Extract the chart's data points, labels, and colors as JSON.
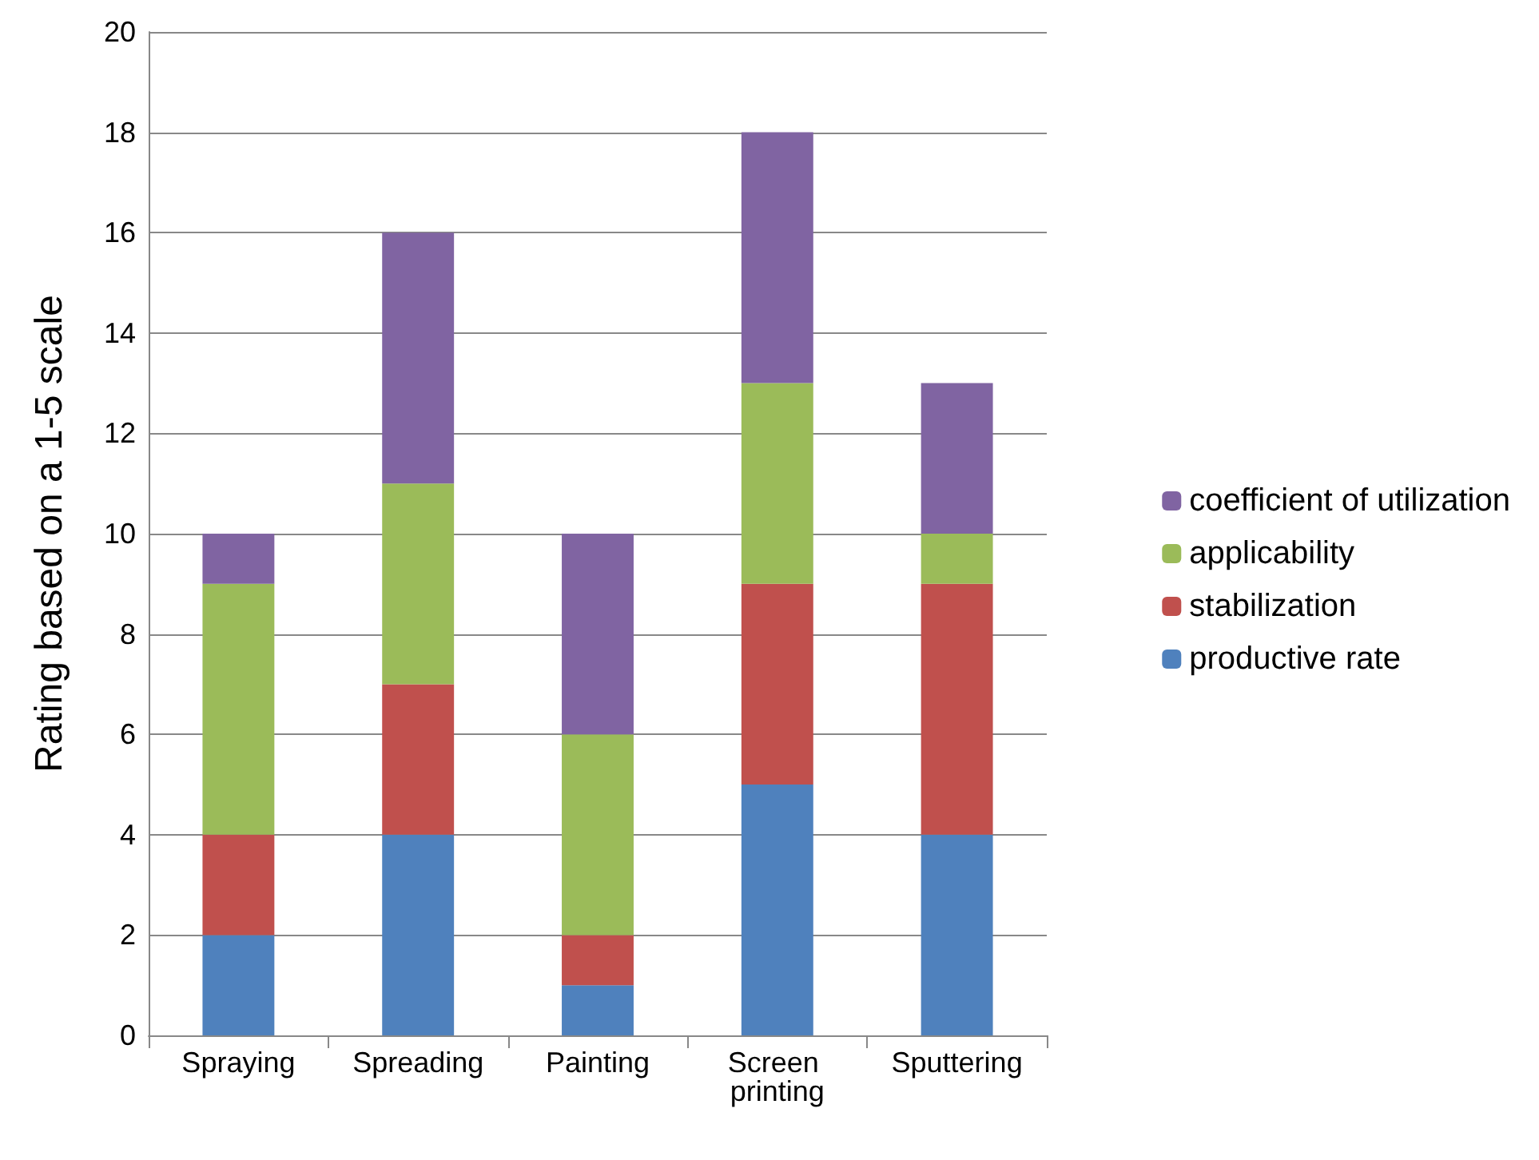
{
  "chart_data": {
    "type": "bar",
    "stacked": true,
    "ylabel": "Rating based on a 1-5 scale",
    "categories": [
      "Spraying",
      "Spreading",
      "Painting",
      "Screen printing",
      "Sputtering"
    ],
    "series": [
      {
        "name": "productive rate",
        "color": "#4f81bd",
        "values": [
          2,
          4,
          1,
          5,
          4
        ]
      },
      {
        "name": "stabilization",
        "color": "#c0504d",
        "values": [
          2,
          3,
          1,
          4,
          5
        ]
      },
      {
        "name": "applicability",
        "color": "#9bbb59",
        "values": [
          5,
          4,
          4,
          4,
          1
        ]
      },
      {
        "name": "coefficient of utilization",
        "color": "#8064a2",
        "values": [
          1,
          5,
          4,
          5,
          3
        ]
      }
    ],
    "ylim": [
      0,
      20
    ],
    "yticks": [
      0,
      2,
      4,
      6,
      8,
      10,
      12,
      14,
      16,
      18,
      20
    ],
    "grid": "y",
    "legend": "right"
  }
}
